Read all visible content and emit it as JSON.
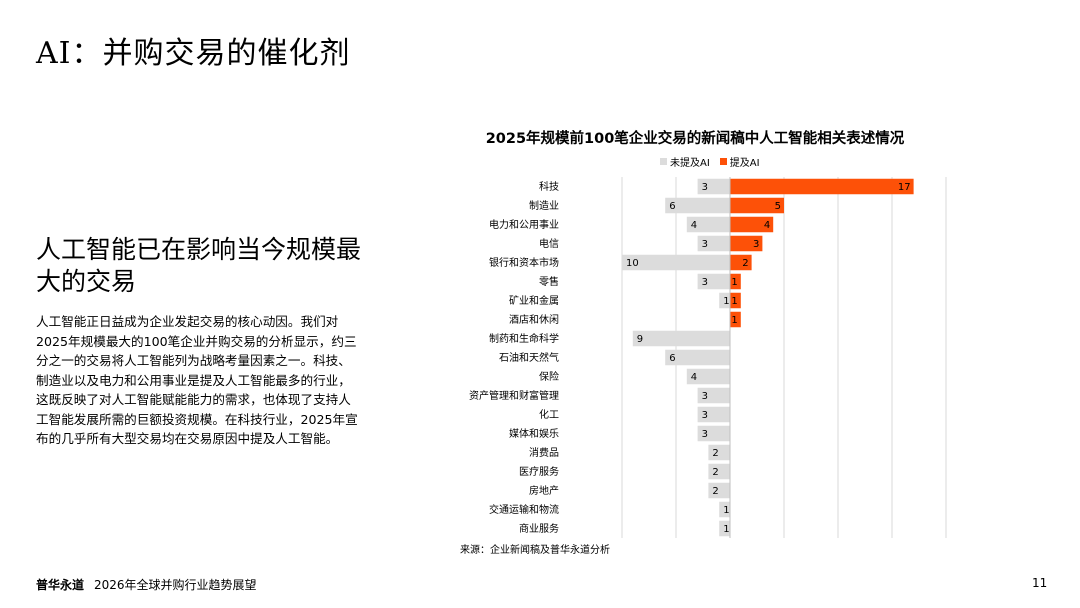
{
  "page": {
    "title": "AI：并购交易的催化剂",
    "subtitle": "人工智能已在影响当今规模最大的交易",
    "body": "人工智能正日益成为企业发起交易的核心动因。我们对2025年规模最大的100笔企业并购交易的分析显示，约三分之一的交易将人工智能列为战略考量因素之一。科技、制造业以及电力和公用事业是提及人工智能最多的行业，这既反映了对人工智能赋能能力的需求，也体现了支持人工智能发展所需的巨额投资规模。在科技行业，2025年宣布的几乎所有大型交易均在交易原因中提及人工智能。",
    "source": "来源：企业新闻稿及普华永道分析",
    "footer_brand": "普华永道",
    "footer_report": "2026年全球并购行业趋势展望",
    "page_number": "11"
  },
  "colors": {
    "not_mentioned": "#dcdcdc",
    "mentioned": "#fd5108",
    "grid": "#d9d9d9",
    "axis": "#bfbfbf"
  },
  "chart_data": {
    "type": "bar",
    "orientation": "horizontal-diverging",
    "title": "2025年规模前100笔企业交易的新闻稿中人工智能相关表述情况",
    "legend_position": "top",
    "categories": [
      "科技",
      "制造业",
      "电力和公用事业",
      "电信",
      "银行和资本市场",
      "零售",
      "矿业和金属",
      "酒店和休闲",
      "制药和生命科学",
      "石油和天然气",
      "保险",
      "资产管理和财富管理",
      "化工",
      "媒体和娱乐",
      "消费品",
      "医疗服务",
      "房地产",
      "交通运输和物流",
      "商业服务"
    ],
    "series": [
      {
        "name": "未提及AI",
        "direction": "left",
        "values": [
          3,
          6,
          4,
          3,
          10,
          3,
          1,
          0,
          9,
          6,
          4,
          3,
          3,
          3,
          2,
          2,
          2,
          1,
          1
        ]
      },
      {
        "name": "提及AI",
        "direction": "right",
        "values": [
          17,
          5,
          4,
          3,
          2,
          1,
          1,
          1,
          0,
          0,
          0,
          0,
          0,
          0,
          0,
          0,
          0,
          0,
          0
        ]
      }
    ],
    "xlim": [
      -10,
      20
    ],
    "grid": true
  }
}
